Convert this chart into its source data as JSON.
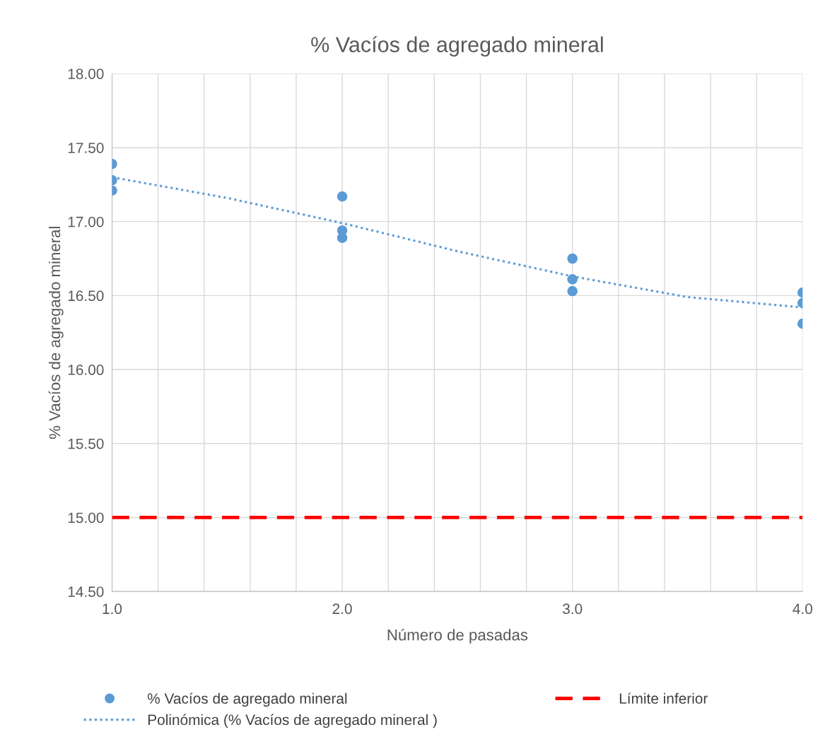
{
  "chart_data": {
    "type": "scatter",
    "title": "% Vacíos de agregado mineral",
    "xlabel": "Número de pasadas",
    "ylabel": "% Vacíos de agregado mineral",
    "series": [
      {
        "name": "% Vacíos de agregado mineral",
        "color": "#5b9bd5",
        "x": [
          1,
          1,
          1,
          2,
          2,
          2,
          3,
          3,
          3,
          4,
          4,
          4
        ],
        "values": [
          17.39,
          17.28,
          17.21,
          17.17,
          16.94,
          16.89,
          16.75,
          16.61,
          16.53,
          16.52,
          16.45,
          16.31
        ],
        "marker": "circle"
      },
      {
        "name": "Polinómica (% Vacíos de agregado mineral )",
        "type": "line",
        "color": "#5b9bd5",
        "x": [
          1,
          1.5,
          2,
          2.5,
          3,
          3.5,
          4
        ],
        "values": [
          17.3,
          17.16,
          16.99,
          16.8,
          16.63,
          16.49,
          16.42
        ],
        "line_style": "dotted",
        "marker": "none"
      }
    ],
    "ref_lines": [
      {
        "axis": "y",
        "value": 15,
        "label": "Límite inferior",
        "color": "#ff0000",
        "line_style": "dashed"
      }
    ],
    "xlim": [
      1,
      4
    ],
    "ylim": [
      14.5,
      18
    ],
    "xticks": [
      {
        "value": 1,
        "label": "1.0"
      },
      {
        "value": 1.2,
        "label": null
      },
      {
        "value": 1.4,
        "label": null
      },
      {
        "value": 1.6,
        "label": null
      },
      {
        "value": 1.8,
        "label": null
      },
      {
        "value": 2,
        "label": "2.0"
      },
      {
        "value": 2.2,
        "label": null
      },
      {
        "value": 2.4,
        "label": null
      },
      {
        "value": 2.6,
        "label": null
      },
      {
        "value": 2.8,
        "label": null
      },
      {
        "value": 3,
        "label": "3.0"
      },
      {
        "value": 3.2,
        "label": null
      },
      {
        "value": 3.4,
        "label": null
      },
      {
        "value": 3.6,
        "label": null
      },
      {
        "value": 3.8,
        "label": null
      },
      {
        "value": 4,
        "label": "4.0"
      }
    ],
    "yticks": [
      {
        "value": 14.5,
        "label": "14.50"
      },
      {
        "value": 15,
        "label": "15.00"
      },
      {
        "value": 15.5,
        "label": "15.50"
      },
      {
        "value": 16,
        "label": "16.00"
      },
      {
        "value": 16.5,
        "label": "16.50"
      },
      {
        "value": 17,
        "label": "17.00"
      },
      {
        "value": 17.5,
        "label": "17.50"
      },
      {
        "value": 18,
        "label": "18.00"
      }
    ],
    "grid": true,
    "legend": "bottom"
  }
}
